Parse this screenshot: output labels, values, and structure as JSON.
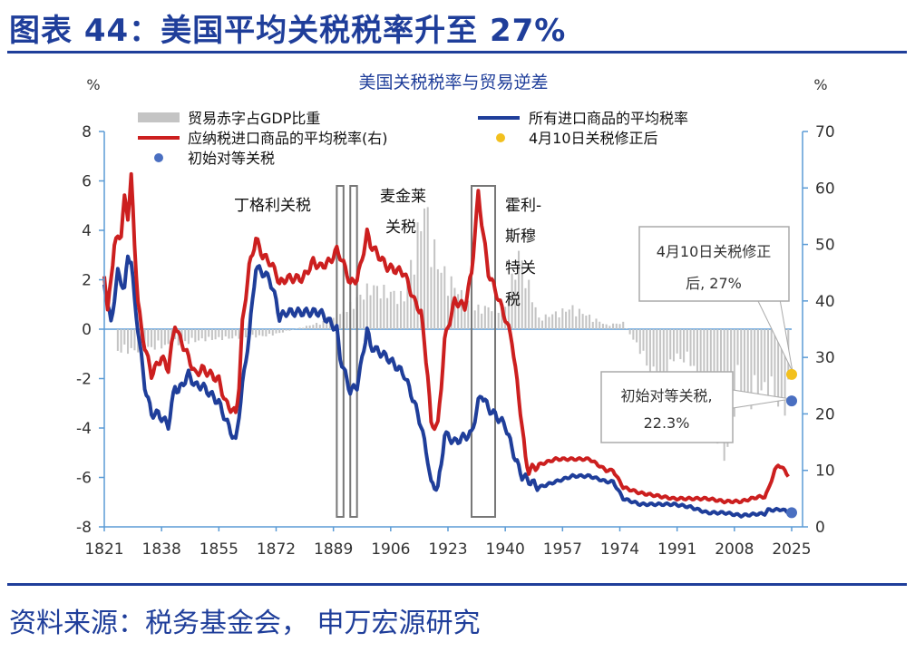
{
  "header": {
    "title": "图表 44：美国平均关税税率升至 27%",
    "source": "资料来源：税务基金会， 申万宏源研究"
  },
  "colors": {
    "brand": "#1f3e9a",
    "deficit": "#c4c4c4",
    "avg_tariff": "#1f3e9a",
    "dutiable_tariff": "#cc1f1f",
    "after_revision": "#f2c01e",
    "reciprocal": "#4a6fc1",
    "right_axis": "#5b9bd5"
  },
  "chart_data": {
    "type": "bar",
    "title": "美国关税税率与贸易逆差",
    "left_unit": "%",
    "right_unit": "%",
    "x_ticks": [
      1821,
      1838,
      1855,
      1872,
      1889,
      1906,
      1923,
      1940,
      1957,
      1974,
      1991,
      2008,
      2025
    ],
    "xlim": [
      1821,
      2025
    ],
    "left_ylim": [
      -8,
      8
    ],
    "left_ticks": [
      8,
      6,
      4,
      2,
      0,
      -2,
      -4,
      -6,
      -8
    ],
    "right_ylim": [
      0,
      70
    ],
    "right_ticks": [
      70,
      60,
      50,
      40,
      30,
      20,
      10,
      0
    ],
    "legend": {
      "deficit": "贸易赤字占GDP比重",
      "avg_tariff": "所有进口商品的平均税率",
      "dutiable_tariff": "应纳税进口商品的平均税率(右)",
      "after_revision": "4月10日关税修正后",
      "reciprocal": "初始对等关税"
    },
    "series": [
      {
        "name": "所有进口商品的平均税率",
        "axis": "right",
        "x": [
          1821,
          1823,
          1825,
          1827,
          1828,
          1829,
          1830,
          1831,
          1833,
          1835,
          1837,
          1840,
          1842,
          1843,
          1846,
          1848,
          1850,
          1855,
          1857,
          1860,
          1862,
          1864,
          1866,
          1868,
          1870,
          1872,
          1873,
          1875,
          1880,
          1885,
          1890,
          1891,
          1893,
          1894,
          1896,
          1897,
          1899,
          1900,
          1905,
          1910,
          1913,
          1915,
          1917,
          1918,
          1920,
          1921,
          1922,
          1925,
          1928,
          1930,
          1932,
          1933,
          1935,
          1940,
          1943,
          1945,
          1950,
          1955,
          1960,
          1965,
          1970,
          1972,
          1975,
          1980,
          1985,
          1990,
          1995,
          2000,
          2005,
          2010,
          2015,
          2017,
          2018,
          2020,
          2022,
          2024
        ],
        "values": [
          43,
          36,
          45,
          42,
          48,
          47,
          40,
          35,
          25,
          20,
          20,
          18,
          25,
          24,
          27,
          25,
          25,
          22,
          19,
          15,
          25,
          34,
          46,
          45,
          44,
          40,
          37,
          38,
          38,
          38,
          35,
          30,
          26,
          24,
          25,
          28,
          35,
          32,
          30,
          27,
          22,
          18,
          12,
          7.5,
          7,
          11,
          16.5,
          15,
          16,
          16.5,
          22,
          23.5,
          21,
          18,
          12,
          9,
          7,
          8,
          9,
          9,
          8,
          8,
          5,
          4,
          4,
          4,
          3.5,
          2.5,
          2.5,
          2.0,
          2.3,
          2.3,
          3,
          3,
          3.1,
          2.6
        ]
      },
      {
        "name": "应纳税进口商品的平均税率(右)",
        "axis": "right",
        "x": [
          1821,
          1822,
          1824,
          1826,
          1827,
          1828,
          1829,
          1830,
          1831,
          1832,
          1833,
          1835,
          1838,
          1840,
          1842,
          1843,
          1846,
          1848,
          1850,
          1855,
          1857,
          1860,
          1861,
          1862,
          1864,
          1866,
          1868,
          1870,
          1872,
          1873,
          1875,
          1880,
          1883,
          1885,
          1888,
          1890,
          1891,
          1893,
          1894,
          1896,
          1897,
          1899,
          1900,
          1905,
          1910,
          1913,
          1915,
          1917,
          1918,
          1920,
          1921,
          1922,
          1925,
          1928,
          1930,
          1932,
          1933,
          1935,
          1937,
          1940,
          1942,
          1945,
          1946,
          1947,
          1950,
          1955,
          1960,
          1965,
          1970,
          1972,
          1975,
          1980,
          1985,
          1990,
          1995,
          2000,
          2005,
          2010,
          2015,
          2017,
          2018,
          2020,
          2021,
          2023,
          2024
        ],
        "values": [
          45,
          38,
          50,
          52,
          58,
          55,
          62,
          50,
          40,
          35,
          32,
          27,
          30,
          28,
          36,
          34,
          30,
          27,
          28,
          26,
          22,
          20,
          25,
          36,
          46,
          51,
          48,
          47,
          45,
          43,
          44,
          44,
          47,
          46,
          47,
          49,
          48,
          45,
          43,
          44,
          46,
          52,
          50,
          46,
          45,
          40,
          38,
          27,
          18,
          18,
          25,
          33,
          40,
          39,
          45,
          59,
          54,
          45,
          42,
          37,
          33,
          18,
          12,
          10,
          11,
          12,
          12,
          12,
          10,
          10,
          7,
          6,
          5.5,
          5,
          5,
          5,
          4.5,
          4.5,
          5.3,
          5.3,
          6.5,
          10,
          11,
          10,
          9
        ]
      },
      {
        "name": "贸易赤字占GDP比重",
        "axis": "left",
        "x": [
          1830,
          1850,
          1870,
          1890,
          1900,
          1910,
          1916,
          1920,
          1930,
          1940,
          1944,
          1950,
          1960,
          1970,
          1975,
          1980,
          1985,
          1987,
          1990,
          1995,
          2000,
          2006,
          2009,
          2012,
          2015,
          2020,
          2022,
          2024
        ],
        "values": [
          -1,
          -0.5,
          -0.3,
          0.5,
          2,
          1.5,
          5.8,
          3,
          1,
          1,
          3.5,
          0.5,
          1,
          0.2,
          0.3,
          -1,
          -2.5,
          -3,
          -1.3,
          -1.5,
          -3.7,
          -5.8,
          -2.5,
          -3.5,
          -2.8,
          -3,
          -4,
          -3
        ]
      }
    ],
    "points": [
      {
        "name": "4月10日关税修正后",
        "x": 2025,
        "y": 27,
        "axis": "right"
      },
      {
        "name": "初始对等关税",
        "x": 2025,
        "y": 22.3,
        "axis": "right"
      },
      {
        "name": "avg-latest",
        "x": 2025,
        "y": 2.5,
        "axis": "right"
      }
    ],
    "periods": [
      {
        "label": "丁格利关税",
        "start": 1890,
        "end": 1892
      },
      {
        "label": "麦金莱关税",
        "start": 1894,
        "end": 1896
      },
      {
        "label": "霍利-斯穆特关税",
        "start": 1930,
        "end": 1937
      }
    ],
    "annotations": {
      "dingley": "丁格利关税",
      "mckinley_1": "麦金莱",
      "mckinley_2": "关税",
      "hawley_1": "霍利-",
      "hawley_2": "斯穆",
      "hawley_3": "特关",
      "hawley_4": "税",
      "callout_after_1": "4月10日关税修正",
      "callout_after_2": "后, 27%",
      "callout_initial_1": "初始对等关税,",
      "callout_initial_2": "22.3%"
    }
  }
}
